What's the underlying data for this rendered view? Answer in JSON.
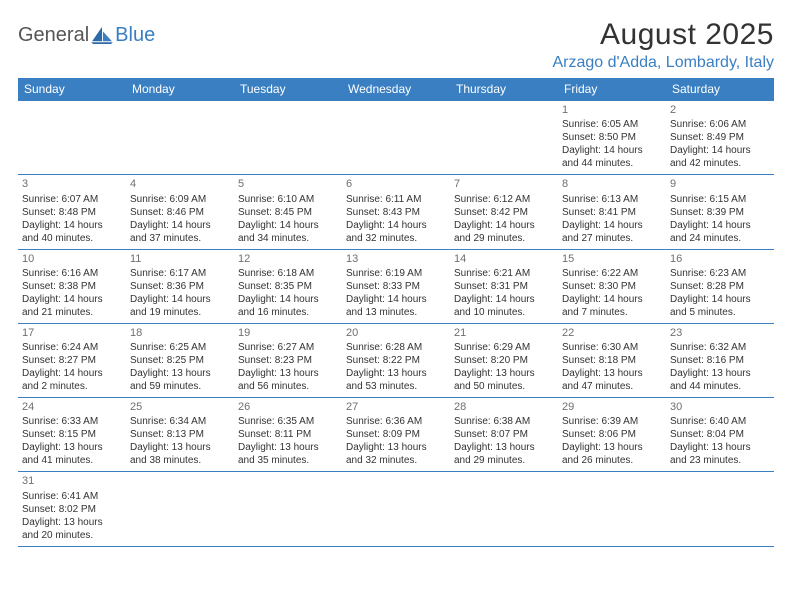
{
  "brand": {
    "text1": "General",
    "text2": "Blue"
  },
  "title": "August 2025",
  "location": "Arzago d'Adda, Lombardy, Italy",
  "colors": {
    "header_bg": "#3a7fc2",
    "header_text": "#ffffff",
    "grid_line": "#3a7fc2",
    "body_text": "#333333",
    "daynum_text": "#6f6f6f",
    "logo_gray": "#555555",
    "logo_blue": "#3a7fc2",
    "background": "#ffffff"
  },
  "typography": {
    "title_fontsize": 30,
    "location_fontsize": 16,
    "header_fontsize": 12,
    "cell_fontsize": 10,
    "daynum_fontsize": 11,
    "logo_fontsize": 20
  },
  "table": {
    "type": "table",
    "columns": [
      "Sunday",
      "Monday",
      "Tuesday",
      "Wednesday",
      "Thursday",
      "Friday",
      "Saturday"
    ],
    "weeks": [
      [
        null,
        null,
        null,
        null,
        null,
        {
          "n": "1",
          "sunrise": "Sunrise: 6:05 AM",
          "sunset": "Sunset: 8:50 PM",
          "daylight": "Daylight: 14 hours and 44 minutes."
        },
        {
          "n": "2",
          "sunrise": "Sunrise: 6:06 AM",
          "sunset": "Sunset: 8:49 PM",
          "daylight": "Daylight: 14 hours and 42 minutes."
        }
      ],
      [
        {
          "n": "3",
          "sunrise": "Sunrise: 6:07 AM",
          "sunset": "Sunset: 8:48 PM",
          "daylight": "Daylight: 14 hours and 40 minutes."
        },
        {
          "n": "4",
          "sunrise": "Sunrise: 6:09 AM",
          "sunset": "Sunset: 8:46 PM",
          "daylight": "Daylight: 14 hours and 37 minutes."
        },
        {
          "n": "5",
          "sunrise": "Sunrise: 6:10 AM",
          "sunset": "Sunset: 8:45 PM",
          "daylight": "Daylight: 14 hours and 34 minutes."
        },
        {
          "n": "6",
          "sunrise": "Sunrise: 6:11 AM",
          "sunset": "Sunset: 8:43 PM",
          "daylight": "Daylight: 14 hours and 32 minutes."
        },
        {
          "n": "7",
          "sunrise": "Sunrise: 6:12 AM",
          "sunset": "Sunset: 8:42 PM",
          "daylight": "Daylight: 14 hours and 29 minutes."
        },
        {
          "n": "8",
          "sunrise": "Sunrise: 6:13 AM",
          "sunset": "Sunset: 8:41 PM",
          "daylight": "Daylight: 14 hours and 27 minutes."
        },
        {
          "n": "9",
          "sunrise": "Sunrise: 6:15 AM",
          "sunset": "Sunset: 8:39 PM",
          "daylight": "Daylight: 14 hours and 24 minutes."
        }
      ],
      [
        {
          "n": "10",
          "sunrise": "Sunrise: 6:16 AM",
          "sunset": "Sunset: 8:38 PM",
          "daylight": "Daylight: 14 hours and 21 minutes."
        },
        {
          "n": "11",
          "sunrise": "Sunrise: 6:17 AM",
          "sunset": "Sunset: 8:36 PM",
          "daylight": "Daylight: 14 hours and 19 minutes."
        },
        {
          "n": "12",
          "sunrise": "Sunrise: 6:18 AM",
          "sunset": "Sunset: 8:35 PM",
          "daylight": "Daylight: 14 hours and 16 minutes."
        },
        {
          "n": "13",
          "sunrise": "Sunrise: 6:19 AM",
          "sunset": "Sunset: 8:33 PM",
          "daylight": "Daylight: 14 hours and 13 minutes."
        },
        {
          "n": "14",
          "sunrise": "Sunrise: 6:21 AM",
          "sunset": "Sunset: 8:31 PM",
          "daylight": "Daylight: 14 hours and 10 minutes."
        },
        {
          "n": "15",
          "sunrise": "Sunrise: 6:22 AM",
          "sunset": "Sunset: 8:30 PM",
          "daylight": "Daylight: 14 hours and 7 minutes."
        },
        {
          "n": "16",
          "sunrise": "Sunrise: 6:23 AM",
          "sunset": "Sunset: 8:28 PM",
          "daylight": "Daylight: 14 hours and 5 minutes."
        }
      ],
      [
        {
          "n": "17",
          "sunrise": "Sunrise: 6:24 AM",
          "sunset": "Sunset: 8:27 PM",
          "daylight": "Daylight: 14 hours and 2 minutes."
        },
        {
          "n": "18",
          "sunrise": "Sunrise: 6:25 AM",
          "sunset": "Sunset: 8:25 PM",
          "daylight": "Daylight: 13 hours and 59 minutes."
        },
        {
          "n": "19",
          "sunrise": "Sunrise: 6:27 AM",
          "sunset": "Sunset: 8:23 PM",
          "daylight": "Daylight: 13 hours and 56 minutes."
        },
        {
          "n": "20",
          "sunrise": "Sunrise: 6:28 AM",
          "sunset": "Sunset: 8:22 PM",
          "daylight": "Daylight: 13 hours and 53 minutes."
        },
        {
          "n": "21",
          "sunrise": "Sunrise: 6:29 AM",
          "sunset": "Sunset: 8:20 PM",
          "daylight": "Daylight: 13 hours and 50 minutes."
        },
        {
          "n": "22",
          "sunrise": "Sunrise: 6:30 AM",
          "sunset": "Sunset: 8:18 PM",
          "daylight": "Daylight: 13 hours and 47 minutes."
        },
        {
          "n": "23",
          "sunrise": "Sunrise: 6:32 AM",
          "sunset": "Sunset: 8:16 PM",
          "daylight": "Daylight: 13 hours and 44 minutes."
        }
      ],
      [
        {
          "n": "24",
          "sunrise": "Sunrise: 6:33 AM",
          "sunset": "Sunset: 8:15 PM",
          "daylight": "Daylight: 13 hours and 41 minutes."
        },
        {
          "n": "25",
          "sunrise": "Sunrise: 6:34 AM",
          "sunset": "Sunset: 8:13 PM",
          "daylight": "Daylight: 13 hours and 38 minutes."
        },
        {
          "n": "26",
          "sunrise": "Sunrise: 6:35 AM",
          "sunset": "Sunset: 8:11 PM",
          "daylight": "Daylight: 13 hours and 35 minutes."
        },
        {
          "n": "27",
          "sunrise": "Sunrise: 6:36 AM",
          "sunset": "Sunset: 8:09 PM",
          "daylight": "Daylight: 13 hours and 32 minutes."
        },
        {
          "n": "28",
          "sunrise": "Sunrise: 6:38 AM",
          "sunset": "Sunset: 8:07 PM",
          "daylight": "Daylight: 13 hours and 29 minutes."
        },
        {
          "n": "29",
          "sunrise": "Sunrise: 6:39 AM",
          "sunset": "Sunset: 8:06 PM",
          "daylight": "Daylight: 13 hours and 26 minutes."
        },
        {
          "n": "30",
          "sunrise": "Sunrise: 6:40 AM",
          "sunset": "Sunset: 8:04 PM",
          "daylight": "Daylight: 13 hours and 23 minutes."
        }
      ],
      [
        {
          "n": "31",
          "sunrise": "Sunrise: 6:41 AM",
          "sunset": "Sunset: 8:02 PM",
          "daylight": "Daylight: 13 hours and 20 minutes."
        },
        null,
        null,
        null,
        null,
        null,
        null
      ]
    ]
  }
}
